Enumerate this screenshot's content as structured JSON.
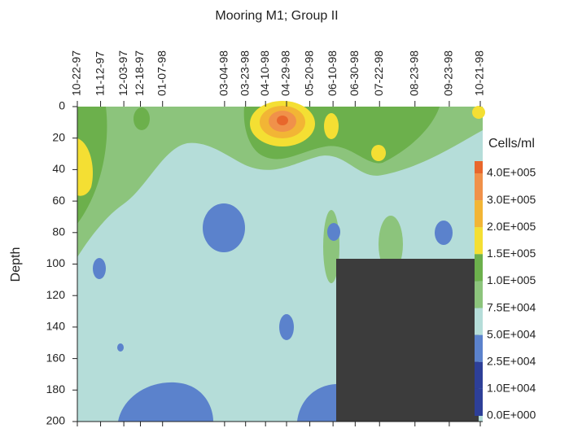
{
  "chart_data": {
    "type": "contour",
    "title": "Mooring M1; Group II",
    "x": [
      "10-22-97",
      "11-12-97",
      "12-03-97",
      "12-18-97",
      "01-07-98",
      "03-04-98",
      "03-23-98",
      "04-10-98",
      "04-29-98",
      "05-20-98",
      "06-10-98",
      "06-30-98",
      "07-22-98",
      "08-23-98",
      "09-23-98",
      "10-21-98"
    ],
    "y_label": "Depth",
    "ylim": [
      0,
      200
    ],
    "yticks": [
      0,
      20,
      40,
      60,
      80,
      100,
      120,
      140,
      160,
      180,
      200
    ],
    "legend_title": "Cells/ml",
    "levels": [
      {
        "value": 400000,
        "label": "4.0E+005"
      },
      {
        "value": 300000,
        "label": "3.0E+005"
      },
      {
        "value": 200000,
        "label": "2.0E+005"
      },
      {
        "value": 150000,
        "label": "1.5E+005"
      },
      {
        "value": 100000,
        "label": "1.0E+005"
      },
      {
        "value": 75000,
        "label": "7.5E+004"
      },
      {
        "value": 50000,
        "label": "5.0E+004"
      },
      {
        "value": 25000,
        "label": "2.5E+004"
      },
      {
        "value": 10000,
        "label": "1.0E+004"
      },
      {
        "value": 0,
        "label": "0.0E+000"
      }
    ],
    "level_colors": [
      "#e8672c",
      "#f0914a",
      "#f2b535",
      "#f4df33",
      "#6cb04c",
      "#8cc47c",
      "#b5ddd9",
      "#5b82cc",
      "#2d3f98",
      "#2d3f98"
    ]
  }
}
